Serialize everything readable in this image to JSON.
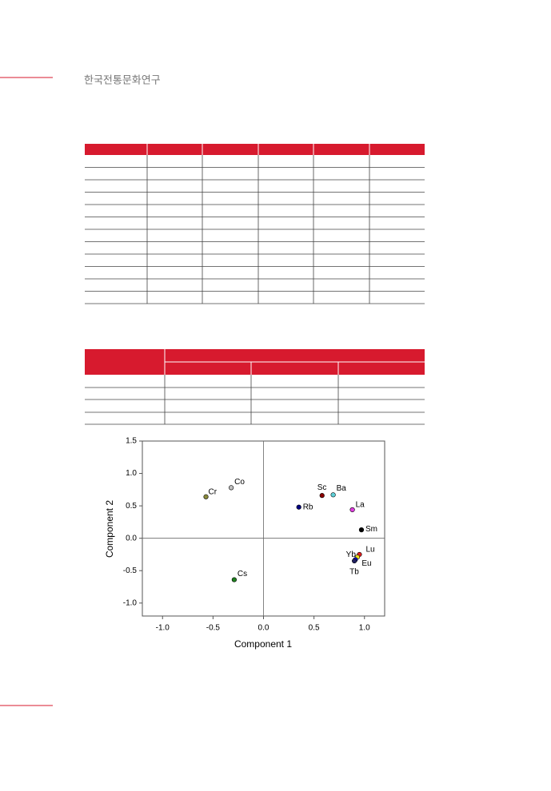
{
  "header": {
    "title": "한국전통문화연구"
  },
  "chart_data": {
    "type": "scatter",
    "x_label": "Component 1",
    "y_label": "Component 2",
    "xlim": [
      -1.2,
      1.2
    ],
    "xticks": [
      {
        "value": -1,
        "label": "-1.0"
      },
      -0.5,
      {
        "value": 0,
        "label": "0.0"
      },
      0.5,
      {
        "value": 1,
        "label": "1.0"
      }
    ],
    "ylim": [
      -1.2,
      1.5
    ],
    "yticks": [
      {
        "value": -1,
        "label": "-1.0"
      },
      -0.5,
      {
        "value": 0,
        "label": "0.0"
      },
      0.5,
      {
        "value": 1,
        "label": "1.0"
      },
      1.5
    ],
    "series": [
      {
        "name": "Cr",
        "color": "#8a8a3c",
        "x": [
          -0.57
        ],
        "values": [
          0.64
        ]
      },
      {
        "name": "Co",
        "color": "#c0c0c0",
        "x": [
          -0.32
        ],
        "values": [
          0.78
        ]
      },
      {
        "name": "Sc",
        "color": "#8b0000",
        "x": [
          0.58
        ],
        "values": [
          0.66
        ]
      },
      {
        "name": "Ba",
        "color": "#5fd0d8",
        "x": [
          0.69
        ],
        "values": [
          0.67
        ]
      },
      {
        "name": "Rb",
        "color": "#000080",
        "x": [
          0.35
        ],
        "values": [
          0.48
        ]
      },
      {
        "name": "La",
        "color": "#e040e0",
        "x": [
          0.88
        ],
        "values": [
          0.44
        ]
      },
      {
        "name": "Sm",
        "color": "#000000",
        "x": [
          0.97
        ],
        "values": [
          0.13
        ]
      },
      {
        "name": "Lu",
        "color": "#e02020",
        "x": [
          0.95
        ],
        "values": [
          -0.25
        ]
      },
      {
        "name": "Yb",
        "color": "#e8e020",
        "x": [
          0.93
        ],
        "values": [
          -0.29
        ]
      },
      {
        "name": "Eu",
        "color": "#0000e0",
        "x": [
          0.91
        ],
        "values": [
          -0.33
        ]
      },
      {
        "name": "Tb",
        "color": "#202060",
        "x": [
          0.9
        ],
        "values": [
          -0.35
        ]
      },
      {
        "name": "Cs",
        "color": "#208020",
        "x": [
          -0.29
        ],
        "values": [
          -0.64
        ]
      }
    ]
  }
}
